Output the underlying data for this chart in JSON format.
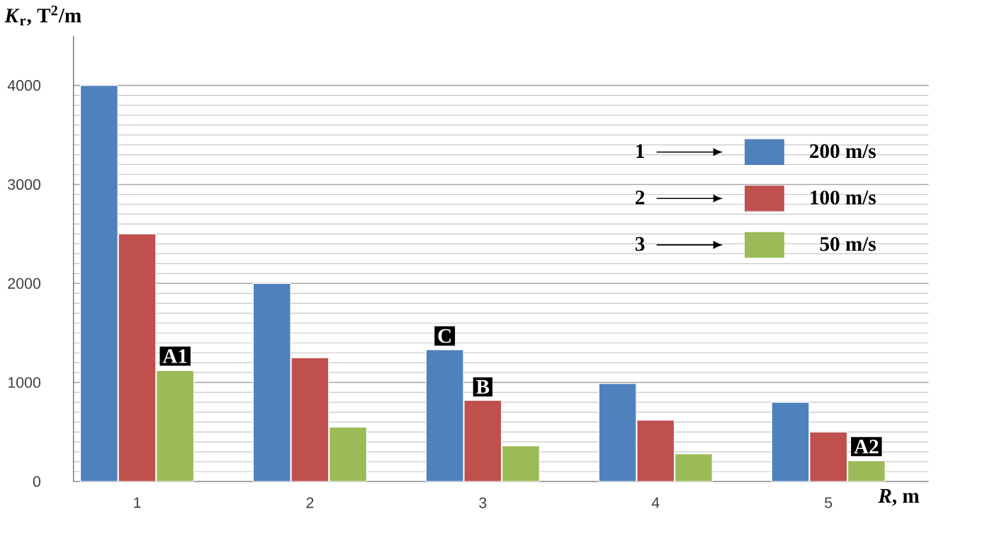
{
  "chart_data": {
    "type": "bar",
    "xlabel": "*R*, m",
    "ylabel": "*K*$_{r}$, T$^{2}$/m",
    "categories": [
      "1",
      "2",
      "3",
      "4",
      "5"
    ],
    "series": [
      {
        "name": "200 m/s",
        "color": "#4f81bd",
        "values": [
          4000,
          2000,
          1330,
          990,
          800
        ]
      },
      {
        "name": "100 m/s",
        "color": "#c0504d",
        "values": [
          2500,
          1250,
          820,
          620,
          500
        ]
      },
      {
        "name": "50 m/s",
        "color": "#9bbb59",
        "values": [
          1120,
          550,
          360,
          280,
          210
        ]
      }
    ],
    "ylim": [
      0,
      4500
    ],
    "yticks": [
      0,
      1000,
      2000,
      3000,
      4000
    ],
    "grid": "y",
    "legend": "right",
    "annotations": [
      "1",
      "2",
      "3",
      "A1",
      "C",
      "B",
      "A2"
    ]
  }
}
